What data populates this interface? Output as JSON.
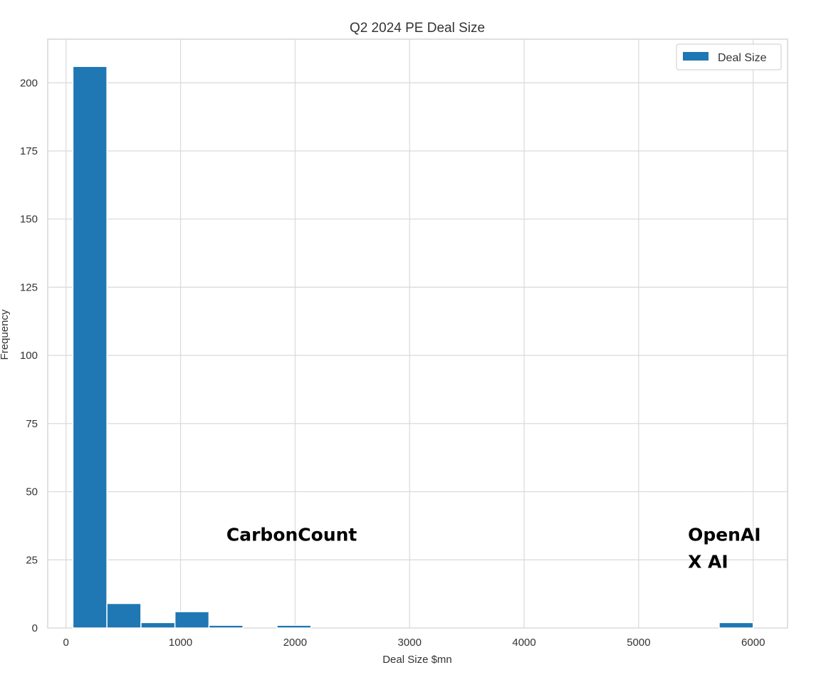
{
  "chart_data": {
    "type": "bar",
    "title": "Q2 2024 PE Deal Size",
    "xlabel": "Deal Size $mn",
    "ylabel": "Frequency",
    "xlim": [
      -160,
      6300
    ],
    "ylim": [
      0,
      216
    ],
    "xticks": [
      0,
      1000,
      2000,
      3000,
      4000,
      5000,
      6000
    ],
    "xtick_labels": [
      "0",
      "1000",
      "2000",
      "3000",
      "4000",
      "5000",
      "6000"
    ],
    "yticks": [
      0,
      25,
      50,
      75,
      100,
      125,
      150,
      175,
      200
    ],
    "ytick_labels": [
      "0",
      "25",
      "50",
      "75",
      "100",
      "125",
      "150",
      "175",
      "200"
    ],
    "grid": true,
    "legend_position": "top-right",
    "series": [
      {
        "name": "Deal Size",
        "color": "#1f77b4",
        "bin_edges": [
          60,
          357,
          654,
          951,
          1248,
          1545,
          1842,
          2139,
          2436,
          2733,
          3030,
          3327,
          3624,
          3921,
          4218,
          4515,
          4812,
          5109,
          5406,
          5703,
          6000
        ],
        "counts": [
          206,
          9,
          2,
          6,
          1,
          0,
          1,
          0,
          0,
          0,
          0,
          0,
          0,
          0,
          0,
          0,
          0,
          0,
          0,
          2
        ]
      }
    ],
    "annotations": [
      {
        "lines": [
          "CarbonCount"
        ],
        "x": 1400,
        "y": 32
      },
      {
        "lines": [
          "OpenAI",
          "X AI"
        ],
        "x": 5430,
        "y": 32
      }
    ]
  }
}
